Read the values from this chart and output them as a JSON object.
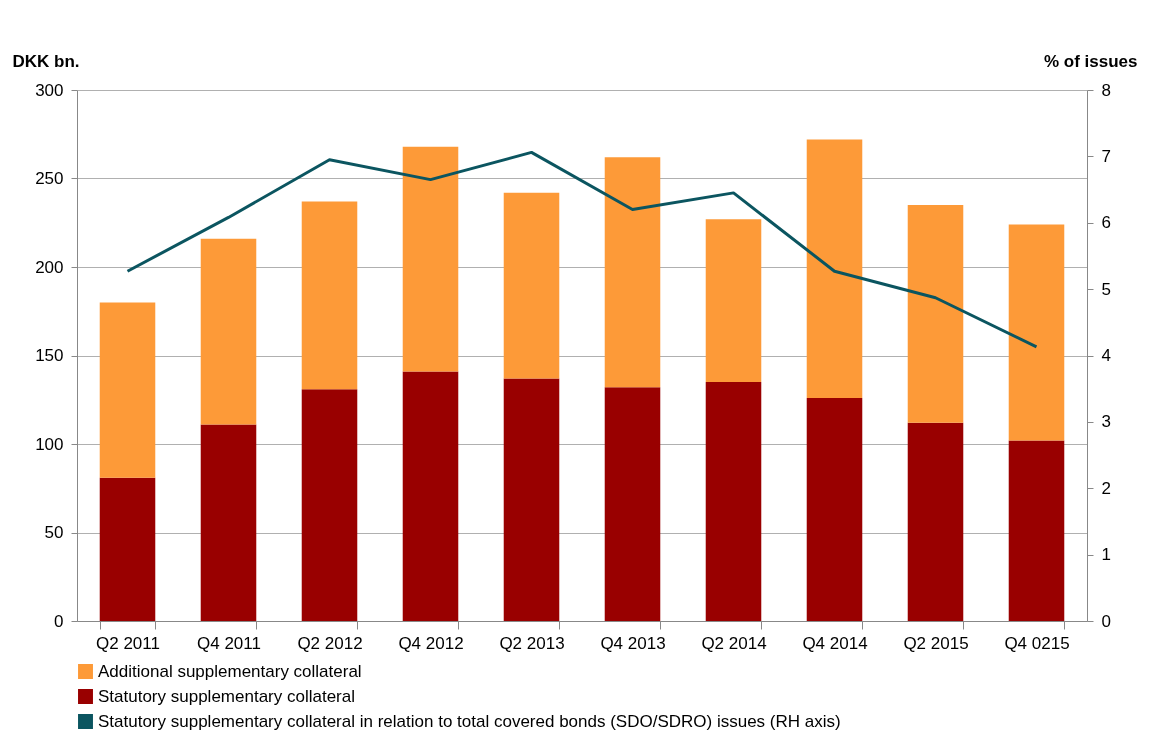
{
  "chart_data": {
    "type": "bar",
    "stacked": true,
    "categories": [
      "Q2 2011",
      "Q4 2011",
      "Q2 2012",
      "Q4 2012",
      "Q2 2013",
      "Q4 2013",
      "Q2 2014",
      "Q4 2014",
      "Q2 2015",
      "Q4 0215"
    ],
    "series": [
      {
        "name": "Statutory supplementary collateral",
        "color": "#990000",
        "values": [
          81,
          111,
          131,
          141,
          137,
          132,
          135,
          126,
          112,
          102
        ]
      },
      {
        "name": "Additional supplementary collateral",
        "color": "#fd9a38",
        "values": [
          99,
          105,
          106,
          127,
          105,
          130,
          92,
          146,
          123,
          122
        ]
      },
      {
        "name": "Statutory supplementary collateral in relation to total covered bonds (SDO/SDRO) issues (RH axis)",
        "type": "line",
        "axis": "y2",
        "color": "#0b5560",
        "values": [
          5.27,
          6.08,
          6.95,
          6.65,
          7.06,
          6.2,
          6.45,
          5.27,
          4.87,
          4.13
        ]
      }
    ],
    "ylabel": "DKK bn.",
    "y2label": "% of issues",
    "ylim": [
      0,
      300
    ],
    "yticks": [
      0,
      50,
      100,
      150,
      200,
      250,
      300
    ],
    "y2lim": [
      0,
      8
    ],
    "y2ticks": [
      0,
      1,
      2,
      3,
      4,
      5,
      6,
      7,
      8
    ],
    "grid": "y",
    "legend": "bottom"
  }
}
